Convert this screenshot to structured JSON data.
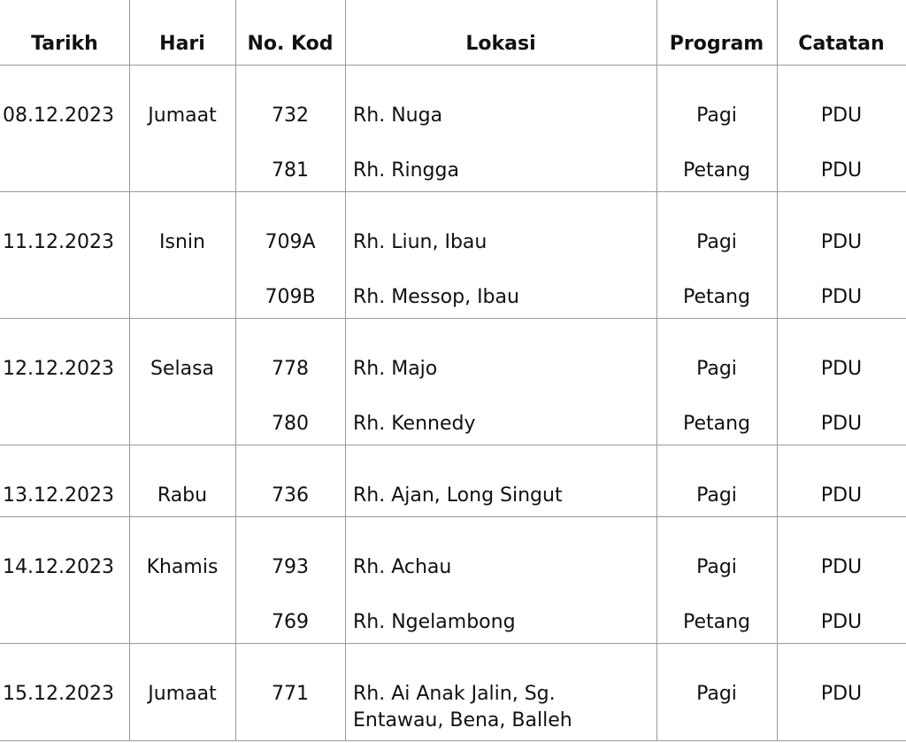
{
  "headers": [
    "Tarikh",
    "Hari",
    "No. Kod",
    "Lokasi",
    "Program",
    "Catatan"
  ],
  "groups": [
    {
      "date": "08.12.2023",
      "day": "Jumaat",
      "entries": [
        {
          "code": "732",
          "location": [
            "Rh. Nuga"
          ],
          "program": "Pagi",
          "note": "PDU"
        },
        {
          "code": "781",
          "location": [
            "Rh. Ringga"
          ],
          "program": "Petang",
          "note": "PDU"
        }
      ]
    },
    {
      "date": "11.12.2023",
      "day": "Isnin",
      "entries": [
        {
          "code": "709A",
          "location": [
            "Rh. Liun, Ibau"
          ],
          "program": "Pagi",
          "note": "PDU"
        },
        {
          "code": "709B",
          "location": [
            "Rh. Messop, Ibau"
          ],
          "program": "Petang",
          "note": "PDU"
        }
      ]
    },
    {
      "date": "12.12.2023",
      "day": "Selasa",
      "entries": [
        {
          "code": "778",
          "location": [
            "Rh. Majo"
          ],
          "program": "Pagi",
          "note": "PDU"
        },
        {
          "code": "780",
          "location": [
            "Rh. Kennedy"
          ],
          "program": "Petang",
          "note": "PDU"
        }
      ]
    },
    {
      "date": "13.12.2023",
      "day": "Rabu",
      "entries": [
        {
          "code": "736",
          "location": [
            "Rh. Ajan, Long Singut"
          ],
          "program": "Pagi",
          "note": "PDU"
        }
      ]
    },
    {
      "date": "14.12.2023",
      "day": "Khamis",
      "entries": [
        {
          "code": "793",
          "location": [
            "Rh. Achau"
          ],
          "program": "Pagi",
          "note": "PDU"
        },
        {
          "code": "769",
          "location": [
            "Rh. Ngelambong"
          ],
          "program": "Petang",
          "note": "PDU"
        }
      ]
    },
    {
      "date": "15.12.2023",
      "day": "Jumaat",
      "entries": [
        {
          "code": "771",
          "location": [
            "Rh. Ai Anak Jalin, Sg.",
            "Entawau, Bena, Balleh"
          ],
          "program": "Pagi",
          "note": "PDU"
        }
      ]
    }
  ]
}
